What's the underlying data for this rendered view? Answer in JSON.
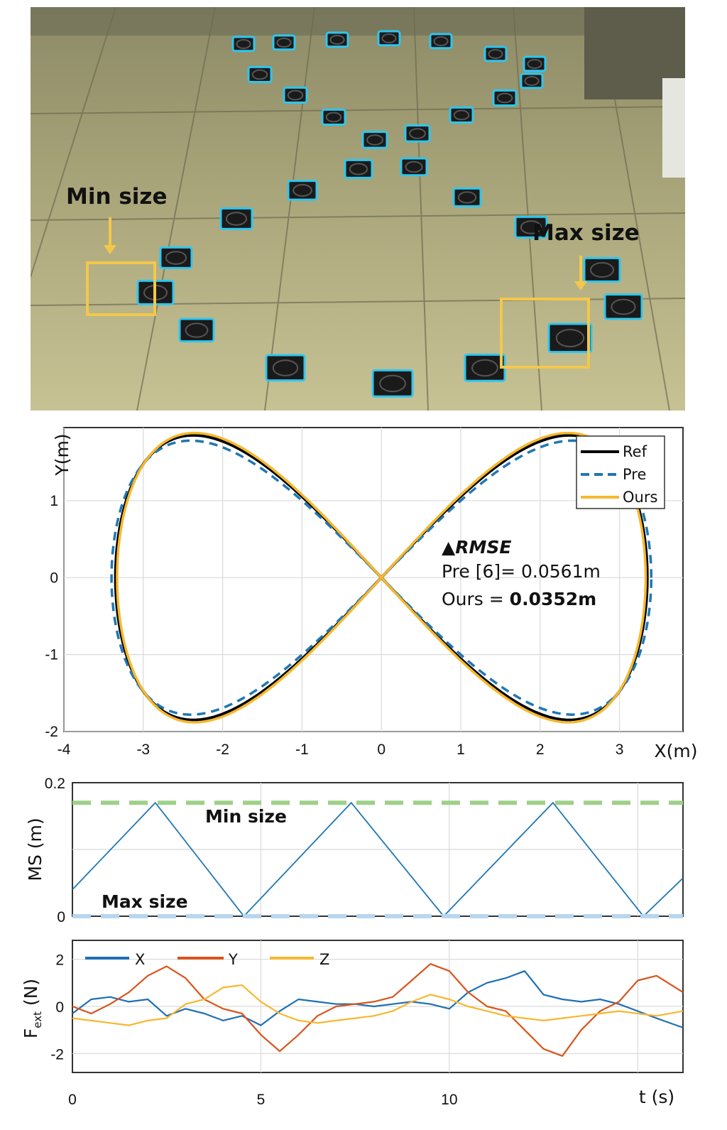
{
  "photo": {
    "label_min": "Min size",
    "label_max": "Max size",
    "highlight_color": "#f4c74b"
  },
  "chart_data": [
    {
      "type": "line",
      "xlabel": "X(m)",
      "ylabel": "Y(m)",
      "xlim": [
        -4,
        3.8
      ],
      "ylim": [
        -2,
        1.95
      ],
      "xticks": [
        -4,
        -3,
        -2,
        -1,
        0,
        1,
        2,
        3
      ],
      "yticks": [
        -2,
        -1,
        0,
        1
      ],
      "grid": true,
      "legend_position": "top-right",
      "series": [
        {
          "name": "Ref",
          "color": "#000000",
          "style": "solid",
          "shape": "figure-eight",
          "amplitude_x": 3.35,
          "amplitude_y": 1.85
        },
        {
          "name": "Pre",
          "color": "#1f77b4",
          "style": "dashed",
          "shape": "figure-eight",
          "amplitude_x": 3.4,
          "amplitude_y": 1.78
        },
        {
          "name": "Ours",
          "color": "#f5b82e",
          "style": "solid",
          "shape": "figure-eight",
          "amplitude_x": 3.33,
          "amplitude_y": 1.88
        }
      ],
      "annotation": {
        "heading": "▲RMSE",
        "pre_line": "Pre [6]= 0.0561m",
        "ours_prefix": "Ours = ",
        "ours_value": "0.0352m"
      }
    },
    {
      "type": "line",
      "ylabel": "MS (m)",
      "xlim": [
        0,
        16.2
      ],
      "ylim": [
        0,
        0.2
      ],
      "yticks": [
        0,
        0.2
      ],
      "grid": true,
      "series": [
        {
          "name": "",
          "color": "#1f77b4",
          "style": "solid",
          "x": [
            0,
            2.2,
            4.55,
            7.4,
            9.85,
            12.75,
            15.15,
            16.2
          ],
          "y": [
            0.04,
            0.17,
            0.0,
            0.17,
            0.0,
            0.17,
            0.0,
            0.057
          ]
        },
        {
          "name": "",
          "color": "#9fd089",
          "style": "dashed",
          "x": [
            0,
            16.2
          ],
          "y": [
            0.17,
            0.17
          ]
        },
        {
          "name": "",
          "color": "#b8d6ee",
          "style": "dashed",
          "x": [
            0,
            16.2
          ],
          "y": [
            0,
            0
          ]
        }
      ],
      "annotations": [
        {
          "text": "Min size",
          "x": 3.6,
          "y": 0.147
        },
        {
          "text": "Max size",
          "x": 0.8,
          "y": 0.018
        }
      ]
    },
    {
      "type": "line",
      "ylabel_main": "F",
      "ylabel_sub": "ext",
      "ylabel_unit": " (N)",
      "xlabel": "t (s)",
      "xlim": [
        0,
        16.2
      ],
      "ylim": [
        -2.8,
        2.8
      ],
      "xticks": [
        0,
        5,
        10
      ],
      "yticks": [
        -2,
        0,
        2
      ],
      "ytick_labels": [
        "-2",
        "0",
        "2"
      ],
      "grid": true,
      "legend_position": "top-left",
      "series": [
        {
          "name": "X",
          "color": "#1f6fb4",
          "x": [
            0,
            0.5,
            1,
            1.5,
            2,
            2.5,
            3,
            3.5,
            4,
            4.5,
            5,
            5.5,
            6,
            6.5,
            7,
            7.5,
            8,
            8.5,
            9,
            9.5,
            10,
            10.5,
            11,
            11.5,
            12,
            12.5,
            13,
            13.5,
            14,
            14.5,
            15,
            15.5,
            16.2
          ],
          "y": [
            -0.3,
            0.3,
            0.4,
            0.2,
            0.3,
            -0.4,
            -0.1,
            -0.3,
            -0.6,
            -0.4,
            -0.8,
            -0.2,
            0.3,
            0.2,
            0.1,
            0.1,
            0.0,
            0.1,
            0.2,
            0.1,
            -0.1,
            0.6,
            1.0,
            1.2,
            1.5,
            0.5,
            0.3,
            0.2,
            0.3,
            0.1,
            -0.2,
            -0.5,
            -0.9
          ]
        },
        {
          "name": "Y",
          "color": "#d9541c",
          "x": [
            0,
            0.5,
            1,
            1.5,
            2,
            2.5,
            3,
            3.5,
            4,
            4.5,
            5,
            5.5,
            6,
            6.5,
            7,
            7.5,
            8,
            8.5,
            9,
            9.5,
            10,
            10.5,
            11,
            11.5,
            12,
            12.5,
            13,
            13.5,
            14,
            14.5,
            15,
            15.5,
            16.2
          ],
          "y": [
            0.0,
            -0.3,
            0.1,
            0.6,
            1.3,
            1.7,
            1.2,
            0.3,
            -0.1,
            -0.3,
            -1.2,
            -1.9,
            -1.2,
            -0.4,
            0.0,
            0.1,
            0.2,
            0.4,
            1.1,
            1.8,
            1.5,
            0.6,
            0.0,
            -0.2,
            -1.0,
            -1.8,
            -2.1,
            -1.0,
            -0.2,
            0.2,
            1.1,
            1.3,
            0.6
          ]
        },
        {
          "name": "Z",
          "color": "#f5b82e",
          "x": [
            0,
            0.5,
            1,
            1.5,
            2,
            2.5,
            3,
            3.5,
            4,
            4.5,
            5,
            5.5,
            6,
            6.5,
            7,
            7.5,
            8,
            8.5,
            9,
            9.5,
            10,
            10.5,
            11,
            11.5,
            12,
            12.5,
            13,
            13.5,
            14,
            14.5,
            15,
            15.5,
            16.2
          ],
          "y": [
            -0.5,
            -0.6,
            -0.7,
            -0.8,
            -0.6,
            -0.5,
            0.1,
            0.3,
            0.8,
            0.9,
            0.2,
            -0.3,
            -0.6,
            -0.7,
            -0.6,
            -0.5,
            -0.4,
            -0.2,
            0.2,
            0.5,
            0.3,
            0.0,
            -0.2,
            -0.4,
            -0.5,
            -0.6,
            -0.5,
            -0.4,
            -0.3,
            -0.2,
            -0.3,
            -0.4,
            -0.2
          ]
        }
      ]
    }
  ]
}
